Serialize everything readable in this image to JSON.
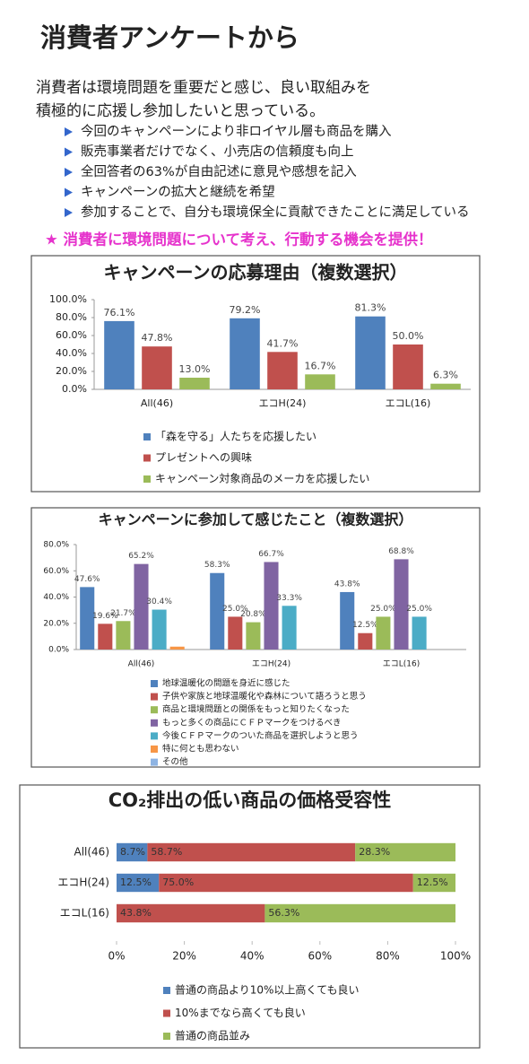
{
  "header": {
    "title": "消費者アンケートから",
    "intro": [
      "消費者は環境問題を重要だと感じ、良い取組みを",
      "積極的に応援し参加したいと思っている。"
    ],
    "bullets": [
      "今回のキャンペーンにより非ロイヤル層も商品を購入",
      "販売事業者だけでなく、小売店の信頼度も向上",
      "全回答者の63%が自由記述に意見や感想を記入",
      "キャンペーンの拡大と継続を希望",
      "参加することで、自分も環境保全に貢献できたことに満足している"
    ],
    "highlight": "★ 消費者に環境問題について考え、行動する機会を提供！"
  },
  "chart_data": [
    {
      "type": "bar",
      "title": "キャンペーンの応募理由（複数選択）",
      "categories": [
        "All(46)",
        "エコH(24)",
        "エコL(16)"
      ],
      "series": [
        {
          "name": "「森を守る」人たちを応援したい",
          "color": "#4f81bd",
          "values": [
            76.1,
            79.2,
            81.3
          ],
          "value_labels": [
            "76.1%",
            "79.2%",
            "81.3%"
          ]
        },
        {
          "name": "プレゼントへの興味",
          "color": "#c0504d",
          "values": [
            47.8,
            41.7,
            50.0
          ],
          "value_labels": [
            "47.8%",
            "41.7%",
            "50.0%"
          ]
        },
        {
          "name": "キャンペーン対象商品のメーカを応援したい",
          "color": "#9bbb59",
          "values": [
            13.0,
            16.7,
            6.3
          ],
          "value_labels": [
            "13.0%",
            "16.7%",
            "6.3%"
          ]
        }
      ],
      "ylim": [
        0,
        100
      ],
      "yticks": [
        {
          "value": 0,
          "label": "0.0%"
        },
        {
          "value": 20,
          "label": "20.0%"
        },
        {
          "value": 40,
          "label": "40.0%"
        },
        {
          "value": 60,
          "label": "60.0%"
        },
        {
          "value": 80,
          "label": "80.0%"
        },
        {
          "value": 100,
          "label": "100.0%"
        }
      ],
      "legend": "bottom"
    },
    {
      "type": "bar",
      "title": "キャンペーンに参加して感じたこと（複数選択）",
      "categories": [
        "All(46)",
        "エコH(24)",
        "エコL(16)"
      ],
      "series": [
        {
          "name": "地球温暖化の問題を身近に感じた",
          "color": "#4f81bd",
          "values": [
            47.6,
            58.3,
            43.8
          ],
          "value_labels": [
            "47.6%",
            "58.3%",
            "43.8%"
          ]
        },
        {
          "name": "子供や家族と地球温暖化や森林について語ろうと思う",
          "color": "#c0504d",
          "values": [
            19.6,
            25.0,
            12.5
          ],
          "value_labels": [
            "19.6%",
            "25.0%",
            "12.5%"
          ]
        },
        {
          "name": "商品と環境問題との関係をもっと知りたくなった",
          "color": "#9bbb59",
          "values": [
            21.7,
            20.8,
            25.0
          ],
          "value_labels": [
            "21.7%",
            "20.8%",
            "25.0%"
          ]
        },
        {
          "name": "もっと多くの商品にＣＦＰマークをつけるべき",
          "color": "#8064a2",
          "values": [
            65.2,
            66.7,
            68.8
          ],
          "value_labels": [
            "65.2%",
            "66.7%",
            "68.8%"
          ]
        },
        {
          "name": "今後ＣＦＰマークのついた商品を選択しようと思う",
          "color": "#4bacc6",
          "values": [
            30.4,
            33.3,
            25.0
          ],
          "value_labels": [
            "30.4%",
            "33.3%",
            "25.0%"
          ]
        },
        {
          "name": "特に何とも思わない",
          "color": "#f79646",
          "values": [
            2.2,
            0,
            0
          ]
        },
        {
          "name": "その他",
          "color": "#8eb4e3",
          "values": [
            0,
            0,
            0
          ]
        }
      ],
      "ylim": [
        0,
        80
      ],
      "yticks": [
        {
          "value": 0,
          "label": "0.0%"
        },
        {
          "value": 20,
          "label": "20.0%"
        },
        {
          "value": 40,
          "label": "40.0%"
        },
        {
          "value": 60,
          "label": "60.0%"
        },
        {
          "value": 80,
          "label": "80.0%"
        }
      ],
      "legend": "bottom"
    },
    {
      "type": "bar",
      "orientation": "horizontal",
      "stacked": "percent",
      "title": "CO₂排出の低い商品の価格受容性",
      "categories": [
        "All(46)",
        "エコH(24)",
        "エコL(16)"
      ],
      "series": [
        {
          "name": "普通の商品より10%以上高くても良い",
          "color": "#4f81bd",
          "values": [
            8.7,
            12.5,
            0
          ],
          "value_labels": [
            "8.7%",
            "12.5%",
            null
          ]
        },
        {
          "name": "10%までなら高くても良い",
          "color": "#c0504d",
          "values": [
            58.7,
            75.0,
            43.8
          ],
          "value_labels": [
            "58.7%",
            "75.0%",
            "43.8%"
          ]
        },
        {
          "name": "普通の商品並み",
          "color": "#9bbb59",
          "values": [
            28.3,
            12.5,
            56.3
          ],
          "value_labels": [
            "28.3%",
            "12.5%",
            "56.3%"
          ]
        }
      ],
      "xlim": [
        0,
        100
      ],
      "xticks": [
        {
          "value": 0,
          "label": "0%"
        },
        {
          "value": 20,
          "label": "20%"
        },
        {
          "value": 40,
          "label": "40%"
        },
        {
          "value": 60,
          "label": "60%"
        },
        {
          "value": 80,
          "label": "80%"
        },
        {
          "value": 100,
          "label": "100%"
        }
      ],
      "legend": "bottom"
    }
  ]
}
